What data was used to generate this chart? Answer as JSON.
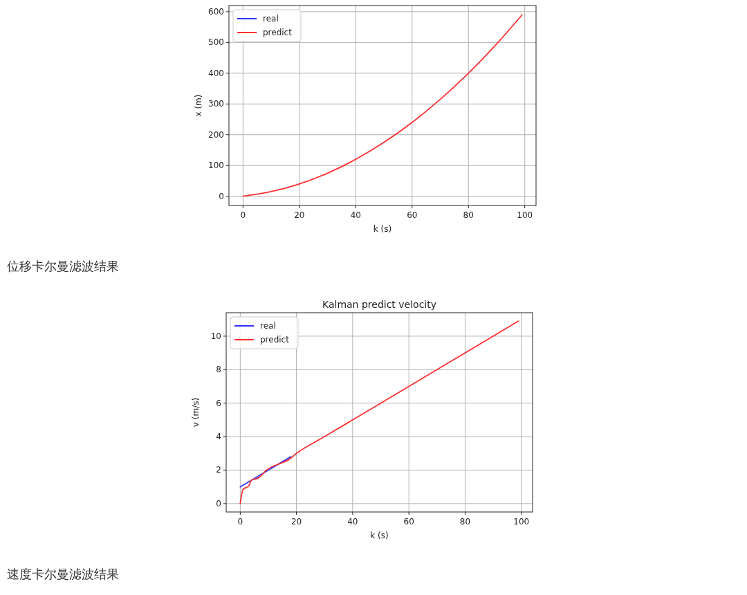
{
  "chart_data": [
    {
      "type": "line",
      "xlabel": "k (s)",
      "ylabel": "x (m)",
      "xlim": [
        -5,
        104
      ],
      "ylim": [
        -30,
        620
      ],
      "xticks": [
        0,
        20,
        40,
        60,
        80,
        100
      ],
      "yticks": [
        0,
        100,
        200,
        300,
        400,
        500,
        600
      ],
      "grid": true,
      "legend": "top left",
      "annotations": [
        "位移卡尔曼滤波结果"
      ],
      "series": [
        {
          "name": "real",
          "color": "#3030ff"
        },
        {
          "name": "predict",
          "color": "#ff3030",
          "x": [
            0,
            10,
            20,
            30,
            40,
            50,
            60,
            70,
            80,
            90,
            99
          ],
          "values": [
            0,
            15,
            40,
            75,
            120,
            175,
            240,
            315,
            400,
            495,
            589
          ]
        }
      ]
    },
    {
      "type": "line",
      "title": "Kalman predict velocity",
      "xlabel": "k (s)",
      "ylabel": "v (m/s)",
      "xlim": [
        -5,
        104
      ],
      "ylim": [
        -0.5,
        11.4
      ],
      "xticks": [
        0,
        20,
        40,
        60,
        80,
        100
      ],
      "yticks": [
        0,
        2,
        4,
        6,
        8,
        10
      ],
      "grid": true,
      "legend": "top left",
      "annotations": [
        "速度卡尔曼滤波结果"
      ],
      "series": [
        {
          "name": "real",
          "color": "#3030ff",
          "x": [
            0,
            10,
            18
          ],
          "values": [
            1,
            2,
            2.8
          ]
        },
        {
          "name": "predict",
          "color": "#ff3030",
          "x": [
            0,
            1,
            3,
            4,
            6,
            7,
            9,
            15,
            17,
            20,
            30,
            50,
            99
          ],
          "values": [
            0,
            0.85,
            1.05,
            1.4,
            1.5,
            1.6,
            1.95,
            2.45,
            2.6,
            3.0,
            4.0,
            6,
            10.9
          ]
        }
      ]
    }
  ]
}
